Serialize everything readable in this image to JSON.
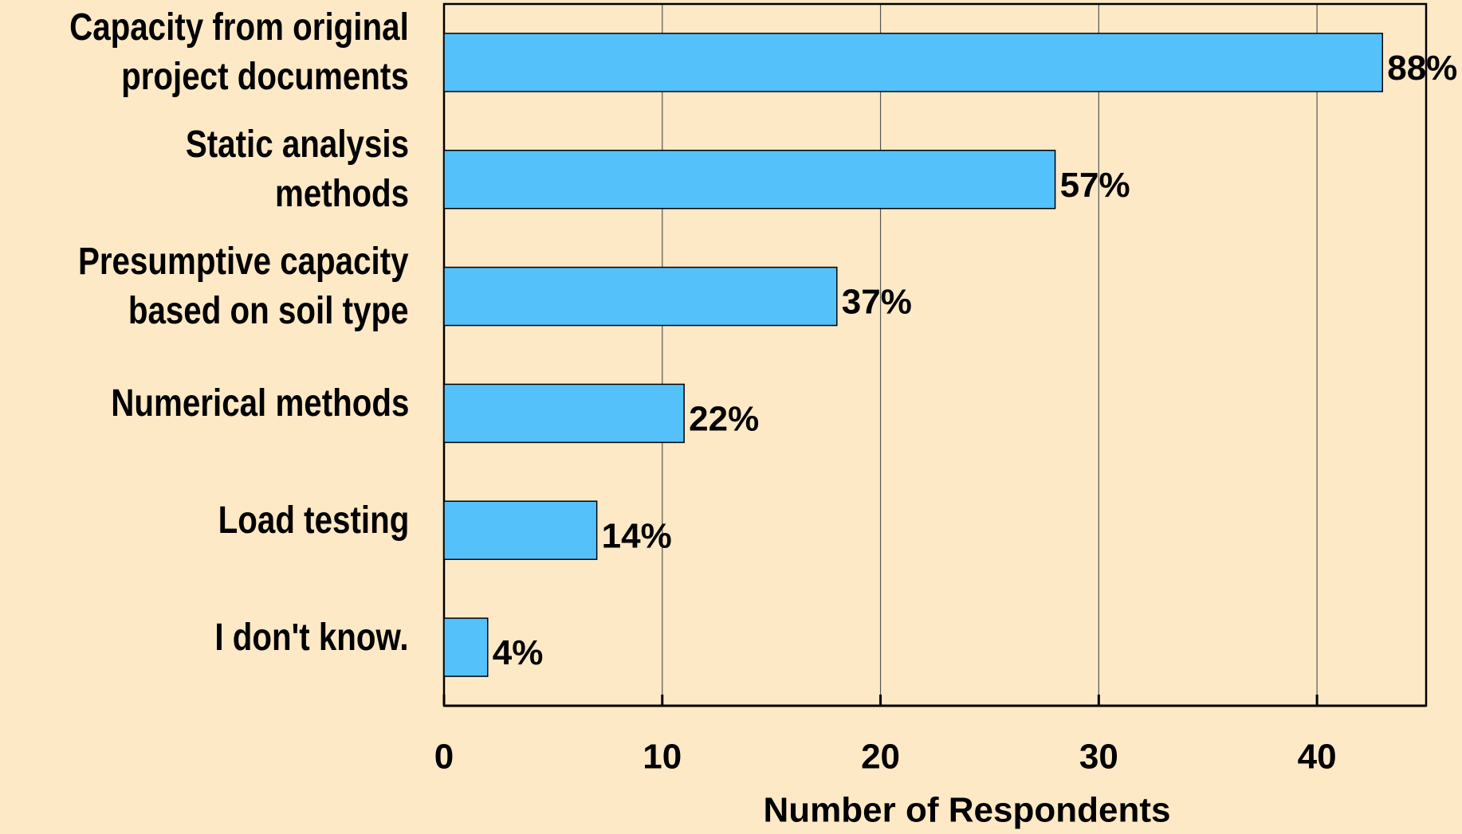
{
  "chart_data": {
    "type": "bar",
    "orientation": "horizontal",
    "categories": [
      "Capacity from original\nproject documents",
      "Static analysis methods",
      "Presumptive capacity\nbased on soil type",
      "Numerical methods",
      "Load testing",
      "I don't know."
    ],
    "values": [
      43,
      28,
      18,
      11,
      7,
      2
    ],
    "annotations": [
      "88%",
      "57%",
      "37%",
      "22%",
      "14%",
      "4%"
    ],
    "color": "#55c1fb",
    "xlabel": "Number of Respondents",
    "xlim": [
      0,
      45
    ],
    "xticks": [
      0,
      10,
      20,
      30,
      40
    ],
    "grid": true
  }
}
